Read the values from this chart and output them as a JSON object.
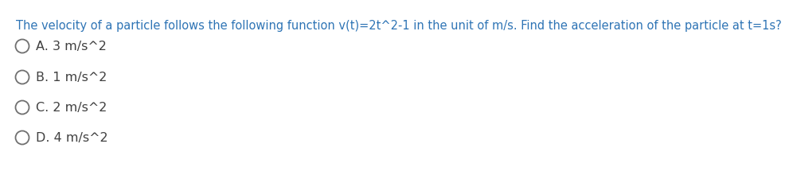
{
  "question": "The velocity of a particle follows the following function v(t)=2t^2-1 in the unit of m/s. Find the acceleration of the particle at t=1s?",
  "options": [
    "A. 3 m/s^2",
    "B. 1 m/s^2",
    "C. 2 m/s^2",
    "D. 4 m/s^2"
  ],
  "question_color": "#2e74b5",
  "option_color": "#404040",
  "bg_color": "#ffffff",
  "question_fontsize": 10.5,
  "option_fontsize": 11.5,
  "circle_color": "#707070"
}
